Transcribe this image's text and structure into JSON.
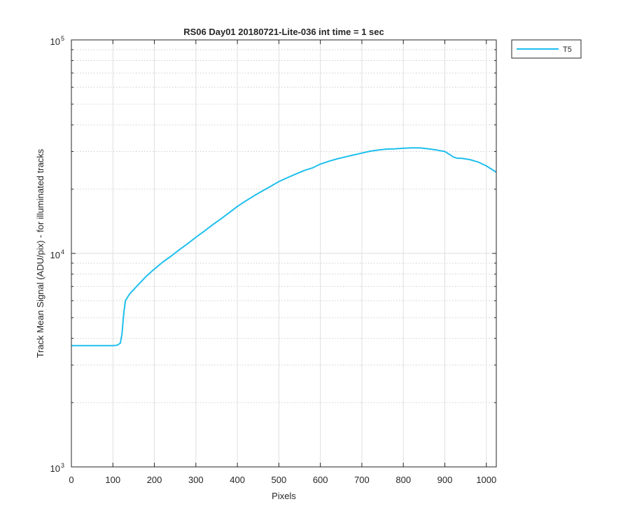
{
  "chart_data": {
    "type": "line",
    "title": "RS06 Day01 20180721-Lite-036 int time = 1 sec",
    "xlabel": "Pixels",
    "ylabel": "Track Mean Signal (ADU/pix) - for illuminated tracks",
    "xlim": [
      0,
      1024
    ],
    "ylim": [
      1000,
      100000
    ],
    "yscale": "log",
    "grid": true,
    "x_ticks": [
      0,
      100,
      200,
      300,
      400,
      500,
      600,
      700,
      800,
      900,
      1000
    ],
    "y_ticks": [
      {
        "base": "10",
        "exp": "3",
        "value": 1000
      },
      {
        "base": "10",
        "exp": "4",
        "value": 10000
      },
      {
        "base": "10",
        "exp": "5",
        "value": 100000
      }
    ],
    "legend_position": "outside-top-right",
    "series": [
      {
        "name": "T5",
        "color": "#1ebfed",
        "points": [
          [
            0,
            3700
          ],
          [
            50,
            3700
          ],
          [
            100,
            3700
          ],
          [
            110,
            3710
          ],
          [
            118,
            3800
          ],
          [
            122,
            4200
          ],
          [
            126,
            5200
          ],
          [
            130,
            6000
          ],
          [
            140,
            6450
          ],
          [
            160,
            7100
          ],
          [
            180,
            7800
          ],
          [
            200,
            8450
          ],
          [
            220,
            9100
          ],
          [
            240,
            9700
          ],
          [
            260,
            10400
          ],
          [
            280,
            11100
          ],
          [
            300,
            11900
          ],
          [
            320,
            12700
          ],
          [
            340,
            13600
          ],
          [
            360,
            14500
          ],
          [
            380,
            15500
          ],
          [
            400,
            16600
          ],
          [
            420,
            17600
          ],
          [
            440,
            18600
          ],
          [
            460,
            19600
          ],
          [
            480,
            20600
          ],
          [
            500,
            21700
          ],
          [
            520,
            22600
          ],
          [
            540,
            23500
          ],
          [
            560,
            24400
          ],
          [
            580,
            25100
          ],
          [
            600,
            26200
          ],
          [
            620,
            27000
          ],
          [
            640,
            27700
          ],
          [
            660,
            28300
          ],
          [
            680,
            28900
          ],
          [
            700,
            29500
          ],
          [
            720,
            30100
          ],
          [
            740,
            30500
          ],
          [
            760,
            30800
          ],
          [
            780,
            30900
          ],
          [
            800,
            31100
          ],
          [
            820,
            31200
          ],
          [
            840,
            31200
          ],
          [
            860,
            30900
          ],
          [
            880,
            30500
          ],
          [
            900,
            30000
          ],
          [
            910,
            29200
          ],
          [
            920,
            28300
          ],
          [
            930,
            27900
          ],
          [
            940,
            27900
          ],
          [
            960,
            27500
          ],
          [
            980,
            26800
          ],
          [
            1000,
            25700
          ],
          [
            1024,
            24000
          ]
        ]
      }
    ]
  }
}
